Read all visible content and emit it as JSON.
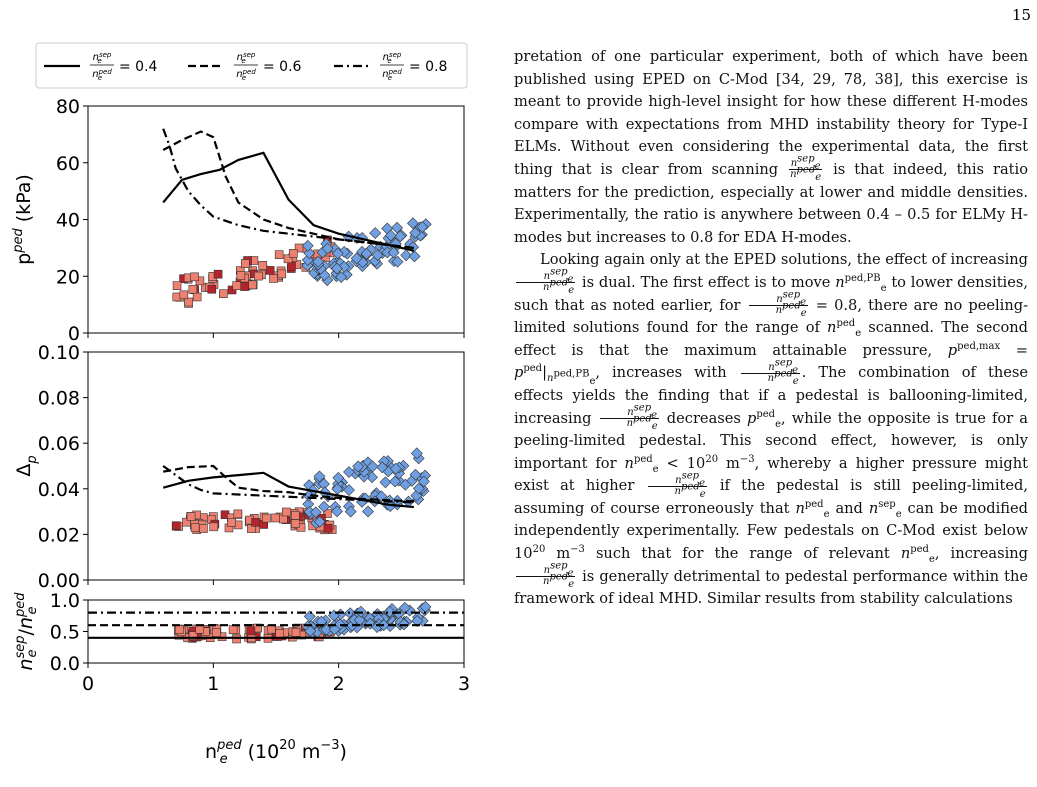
{
  "page_number": "15",
  "figure": {
    "legend": [
      {
        "label": "= 0.4",
        "style": "solid"
      },
      {
        "label": "= 0.6",
        "style": "dashed"
      },
      {
        "label": "= 0.8",
        "style": "dashdot"
      }
    ],
    "legend_ratio": {
      "num_base": "n",
      "num_sup": "sep",
      "num_sub": "e",
      "den_base": "n",
      "den_sup": "ped",
      "den_sub": "e"
    },
    "xlabel": "n",
    "xlabel_sub": "e",
    "xlabel_sup": "ped",
    "xlabel_units_pre": "(10",
    "xlabel_units_exp": "20",
    "xlabel_units_mid": " m",
    "xlabel_units_exp2": "−3",
    "xlabel_units_post": ")",
    "colors": {
      "low": "#ee8070",
      "mid": "#b5242a",
      "high": "#6f9fe0",
      "edge": "#333333",
      "purple": "#b9a6e6"
    }
  },
  "chart_data": [
    {
      "type": "scatter",
      "title": "",
      "ylabel": "p^ped (kPa)",
      "ylabel_text": {
        "base": "p",
        "sup": "ped",
        "rest": " (kPa)"
      },
      "xlim": [
        0,
        3
      ],
      "ylim": [
        0,
        80
      ],
      "yticks": [
        "0",
        "20",
        "40",
        "60",
        "80"
      ],
      "xticks": [],
      "series": [
        {
          "name": "= 0.4",
          "kind": "line",
          "style": "solid",
          "x": [
            0.6,
            0.75,
            0.9,
            1.05,
            1.2,
            1.4,
            1.6,
            1.8,
            2.0,
            2.2,
            2.4,
            2.6
          ],
          "y": [
            46,
            54,
            56,
            57.5,
            61,
            63.5,
            47,
            38,
            35,
            33,
            31,
            29
          ]
        },
        {
          "name": "= 0.6",
          "kind": "line",
          "style": "dashed",
          "x": [
            0.6,
            0.75,
            0.9,
            1.0,
            1.1,
            1.2,
            1.4,
            1.6,
            1.8,
            2.0,
            2.2,
            2.4,
            2.6
          ],
          "y": [
            64.5,
            68,
            71,
            69,
            55,
            46,
            40,
            37,
            35,
            33,
            32,
            31,
            30
          ]
        },
        {
          "name": "= 0.8",
          "kind": "line",
          "style": "dashdot",
          "x": [
            0.6,
            0.65,
            0.7,
            0.8,
            0.9,
            1.0,
            1.2,
            1.4,
            1.6,
            1.8,
            2.0,
            2.2,
            2.4,
            2.6
          ],
          "y": [
            72,
            66,
            58,
            50,
            45,
            41,
            38,
            36,
            35,
            34,
            33,
            32,
            31,
            30
          ]
        }
      ]
    },
    {
      "type": "scatter",
      "title": "",
      "ylabel": "Δ_p",
      "ylabel_text": {
        "base": "Δ",
        "sub": "p"
      },
      "xlim": [
        0,
        3
      ],
      "ylim": [
        0,
        0.1
      ],
      "yticks": [
        "0.00",
        "0.02",
        "0.04",
        "0.06",
        "0.08",
        "0.10"
      ],
      "xticks": [],
      "series": [
        {
          "name": "= 0.4",
          "kind": "line",
          "style": "solid",
          "x": [
            0.6,
            0.8,
            1.0,
            1.2,
            1.4,
            1.6,
            1.8,
            2.0,
            2.2,
            2.4,
            2.6
          ],
          "y": [
            0.0405,
            0.0435,
            0.045,
            0.046,
            0.047,
            0.041,
            0.039,
            0.037,
            0.035,
            0.033,
            0.032
          ]
        },
        {
          "name": "= 0.6",
          "kind": "line",
          "style": "dashed",
          "x": [
            0.6,
            0.8,
            1.0,
            1.1,
            1.2,
            1.4,
            1.6,
            1.8,
            2.0,
            2.2,
            2.4,
            2.6
          ],
          "y": [
            0.0475,
            0.0495,
            0.05,
            0.045,
            0.0405,
            0.039,
            0.0385,
            0.037,
            0.036,
            0.0355,
            0.035,
            0.0345
          ]
        },
        {
          "name": "= 0.8",
          "kind": "line",
          "style": "dashdot",
          "x": [
            0.6,
            0.7,
            0.8,
            0.9,
            1.0,
            1.2,
            1.4,
            1.6,
            1.8,
            2.0,
            2.2,
            2.4,
            2.6
          ],
          "y": [
            0.05,
            0.046,
            0.042,
            0.0395,
            0.038,
            0.0375,
            0.037,
            0.0365,
            0.036,
            0.0355,
            0.035,
            0.0345,
            0.034
          ]
        }
      ]
    },
    {
      "type": "scatter",
      "title": "",
      "ylabel": "n_e^sep/n_e^ped",
      "ylabel_text": {
        "base": "n",
        "sup": "sep",
        "sub": "e",
        "slash": "/",
        "base2": "n",
        "sup2": "ped",
        "sub2": "e"
      },
      "xlim": [
        0,
        3
      ],
      "ylim": [
        0,
        1
      ],
      "yticks": [
        "0.0",
        "0.5",
        "1.0"
      ],
      "xticks": [
        "0",
        "1",
        "2",
        "3"
      ],
      "series": [
        {
          "name": "= 0.4",
          "kind": "hline",
          "style": "solid",
          "y": 0.4
        },
        {
          "name": "= 0.6",
          "kind": "hline",
          "style": "dashed",
          "y": 0.6
        },
        {
          "name": "= 0.8",
          "kind": "hline",
          "style": "dashdot",
          "y": 0.8
        }
      ]
    }
  ],
  "text": {
    "p1": {
      "a": "pretation of one particular experiment, both of which have been published using EPED on C-Mod [34, 29, 78, 38], this exercise is meant to provide high-level insight for how these different H-modes compare with expectations from MHD instability theory for Type-I ELMs. Without even considering the experimental data, the first thing that is clear from scanning ",
      "b": " is that indeed, this ratio matters for the prediction, especially at lower and middle densities. Experimentally, the ratio is anywhere between 0.4 – 0.5 for ELMy H-modes but increases to 0.8 for EDA H-modes."
    },
    "p2": {
      "a": "Looking again only at the EPED solutions, the effect of increasing ",
      "b": " is dual.  The first effect is to move ",
      "c": "n",
      "c_sup": "ped,PB",
      "c_sub": "e",
      "d": " to lower densities, such that as noted earlier, for ",
      "e": " = 0.8, there are no peeling-limited solutions found for the range of ",
      "f_n": "n",
      "f_sup": "ped",
      "f_sub": "e",
      "g": " scanned.  The second effect is that the maximum attainable pressure, ",
      "h": "p",
      "h_sup": "ped,max",
      "h_mid": " = p",
      "h_sup2": "ped",
      "h_bar": "|",
      "h_sub": "n",
      "h_sub_sub": "e",
      "h_sub_sup": "ped,PB",
      "i": ", increases with ",
      "j": ".  The combination of these effects yields the finding that if a pedestal is ballooning-limited, increasing ",
      "k": " decreases ",
      "k_p": "p",
      "k_sup": "ped",
      "k_sub": "e",
      "l": ", while the opposite is true for a peeling-limited pedestal. This second effect, however, is only important for ",
      "m_n": "n",
      "m_sup": "ped",
      "m_sub": "e",
      "m_rest": " < 10",
      "m_exp": "20",
      "m_unit": " m",
      "m_unit_exp": "−3",
      "n": ", whereby a higher pressure might exist at higher ",
      "o": " if the pedestal is still peeling-limited, assuming of course erroneously that ",
      "p_n": "n",
      "p_sup": "ped",
      "p_sub": "e",
      "q": " and ",
      "r_n": "n",
      "r_sup": "sep",
      "r_sub": "e",
      "s": " can be modified independently experimentally. Few pedestals on C-Mod exist below 10",
      "s_exp": "20",
      "s_unit": " m",
      "s_unit_exp": "−3",
      "t": " such that for the range of relevant ",
      "u_n": "n",
      "u_sup": "ped",
      "u_sub": "e",
      "v": ", increasing ",
      "w": " is generally detrimental to pedestal performance within the framework of ideal MHD. Similar results from stability calculations"
    },
    "frac": {
      "num": "n",
      "num_sup": "sep",
      "num_sub": "e",
      "den": "n",
      "den_sup": "ped",
      "den_sub": "e"
    }
  }
}
